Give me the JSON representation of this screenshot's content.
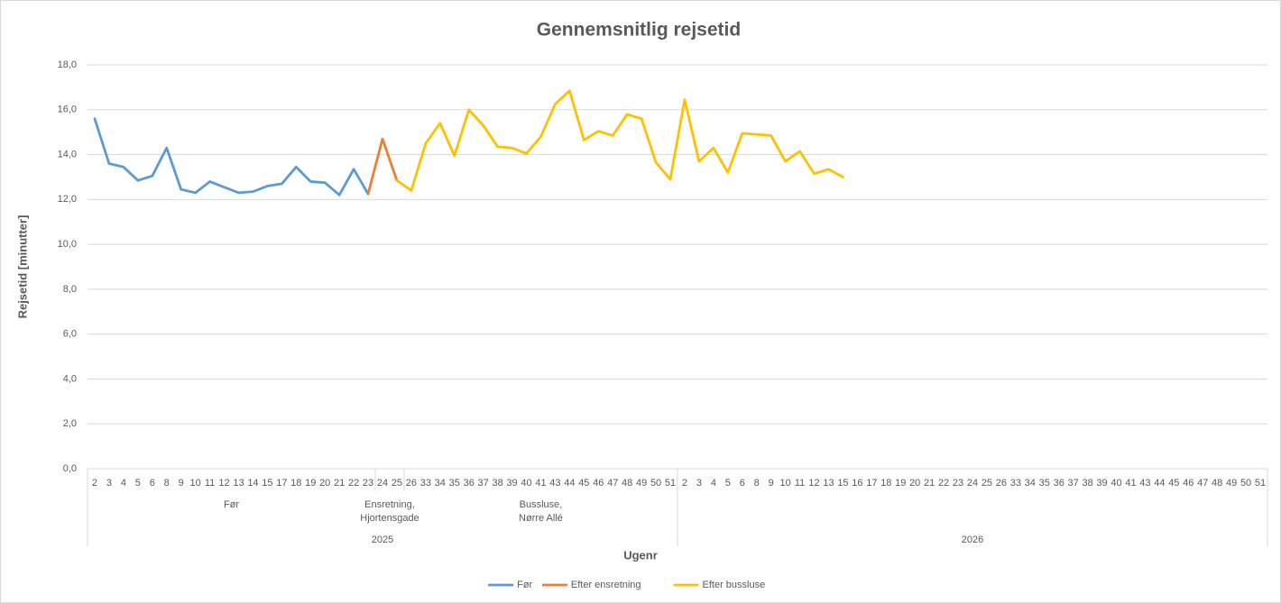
{
  "chart_data": {
    "type": "line",
    "title": "Gennemsnitlig rejsetid",
    "y_label": "Rejsetid [minutter]",
    "x_label": "Ugenr",
    "ylim": [
      0,
      18
    ],
    "yticks": [
      {
        "value": 0,
        "label": "0,0"
      },
      {
        "value": 2,
        "label": "2,0"
      },
      {
        "value": 4,
        "label": "4,0"
      },
      {
        "value": 6,
        "label": "6,0"
      },
      {
        "value": 8,
        "label": "8,0"
      },
      {
        "value": 10,
        "label": "10,0"
      },
      {
        "value": 12,
        "label": "12,0"
      },
      {
        "value": 14,
        "label": "14,0"
      },
      {
        "value": 16,
        "label": "16,0"
      },
      {
        "value": 18,
        "label": "18,0"
      }
    ],
    "grid": true,
    "legend": "bottom",
    "years": [
      {
        "label": "2025",
        "groups": [
          {
            "label": [
              "Før"
            ],
            "categories": [
              "2",
              "3",
              "4",
              "5",
              "6",
              "8",
              "9",
              "10",
              "11",
              "12",
              "13",
              "14",
              "15",
              "17",
              "18",
              "19",
              "20",
              "21",
              "22",
              "23"
            ]
          },
          {
            "label": [
              "Ensretning,",
              "Hjortensgade"
            ],
            "categories": [
              "24",
              "25"
            ]
          },
          {
            "label": [
              "Bussluse,",
              "Nørre Allé"
            ],
            "categories": [
              "26",
              "33",
              "34",
              "35",
              "36",
              "37",
              "38",
              "39",
              "40",
              "41",
              "43",
              "44",
              "45",
              "46",
              "47",
              "48",
              "49",
              "50",
              "51"
            ]
          }
        ]
      },
      {
        "label": "2026",
        "groups": [
          {
            "categories": [
              "2",
              "3",
              "4",
              "5",
              "6",
              "8",
              "9",
              "10",
              "11",
              "12",
              "13",
              "15",
              "16",
              "17",
              "18",
              "19",
              "20",
              "21",
              "22",
              "23",
              "24",
              "25",
              "26",
              "33",
              "34",
              "35",
              "36",
              "37",
              "38",
              "39",
              "40",
              "41",
              "43",
              "44",
              "45",
              "46",
              "47",
              "48",
              "49",
              "50",
              "51"
            ]
          }
        ]
      }
    ],
    "series": [
      {
        "name": "Før",
        "color": "#5b9bd5",
        "values": [
          15.6,
          13.6,
          13.45,
          12.85,
          13.05,
          14.3,
          12.45,
          12.3,
          12.8,
          12.55,
          12.3,
          12.35,
          12.6,
          12.7,
          13.45,
          12.8,
          12.75,
          12.2,
          13.35,
          12.25,
          null,
          null,
          null,
          null,
          null,
          null,
          null,
          null,
          null,
          null,
          null,
          null,
          null,
          null,
          null,
          null,
          null,
          null,
          null,
          null,
          null,
          null,
          null,
          null,
          null,
          null,
          null,
          null,
          null,
          null,
          null,
          null,
          null,
          null,
          null,
          null,
          null,
          null,
          null,
          null,
          null,
          null,
          null,
          null,
          null,
          null,
          null,
          null,
          null,
          null,
          null,
          null,
          null,
          null,
          null,
          null,
          null,
          null,
          null,
          null,
          null,
          null
        ]
      },
      {
        "name": "Efter ensretning",
        "color": "#ed7d31",
        "values": [
          null,
          null,
          null,
          null,
          null,
          null,
          null,
          null,
          null,
          null,
          null,
          null,
          null,
          null,
          null,
          null,
          null,
          null,
          null,
          12.25,
          14.7,
          12.85,
          null,
          null,
          null,
          null,
          null,
          null,
          null,
          null,
          null,
          null,
          null,
          null,
          null,
          null,
          null,
          null,
          null,
          null,
          null,
          null,
          null,
          null,
          null,
          null,
          null,
          null,
          null,
          null,
          null,
          null,
          null,
          null,
          null,
          null,
          null,
          null,
          null,
          null,
          null,
          null,
          null,
          null,
          null,
          null,
          null,
          null,
          null,
          null,
          null,
          null,
          null,
          null,
          null,
          null,
          null,
          null,
          null,
          null,
          null,
          null
        ]
      },
      {
        "name": "Efter bussluse",
        "color": "#ffc000",
        "values": [
          null,
          null,
          null,
          null,
          null,
          null,
          null,
          null,
          null,
          null,
          null,
          null,
          null,
          null,
          null,
          null,
          null,
          null,
          null,
          null,
          null,
          12.85,
          12.4,
          14.5,
          15.4,
          13.95,
          16.0,
          15.3,
          14.35,
          14.3,
          14.05,
          14.8,
          16.25,
          16.85,
          14.65,
          15.05,
          14.85,
          15.8,
          15.6,
          13.65,
          12.9,
          16.45,
          13.7,
          14.3,
          13.2,
          14.95,
          14.9,
          14.85,
          13.7,
          14.15,
          13.15,
          13.35,
          13.0,
          null,
          null,
          null,
          null,
          null,
          null,
          null,
          null,
          null,
          null,
          null,
          null,
          null,
          null,
          null,
          null,
          null,
          null,
          null,
          null,
          null,
          null,
          null,
          null,
          null,
          null,
          null,
          null,
          null
        ]
      }
    ]
  }
}
